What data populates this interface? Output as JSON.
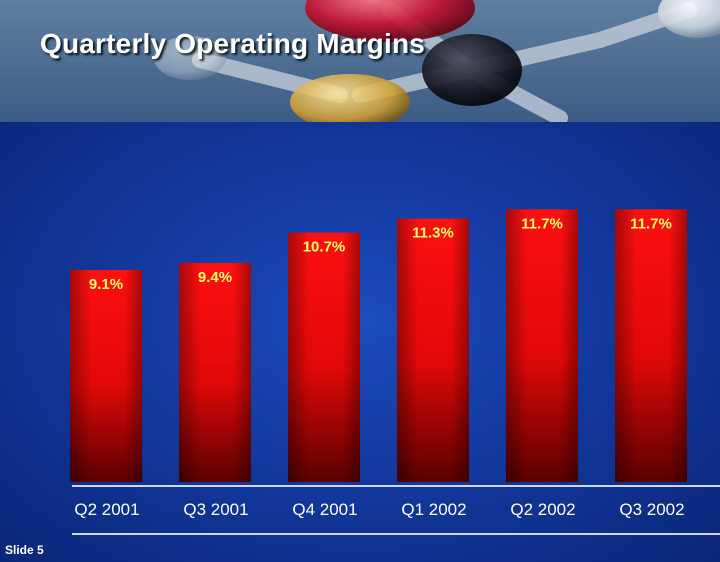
{
  "slide": {
    "title": "Quarterly Operating Margins",
    "slide_number": "Slide 5"
  },
  "colors": {
    "bar_top": "#ff1010",
    "bar_bottom": "#5a0000",
    "label_text": "#ffff66",
    "axis_text": "#ffffff",
    "background": "#13399f"
  },
  "chart_data": {
    "type": "bar",
    "title": "Quarterly Operating Margins",
    "categories": [
      "Q2 2001",
      "Q3 2001",
      "Q4 2001",
      "Q1 2002",
      "Q2 2002",
      "Q3 2002"
    ],
    "values": [
      9.1,
      9.4,
      10.7,
      11.3,
      11.7,
      11.7
    ],
    "data_labels": [
      "9.1%",
      "9.4%",
      "10.7%",
      "11.3%",
      "11.7%",
      "11.7%"
    ],
    "xlabel": "",
    "ylabel": "",
    "ylim": [
      0,
      12.1
    ],
    "grid": false,
    "legend": "none"
  }
}
